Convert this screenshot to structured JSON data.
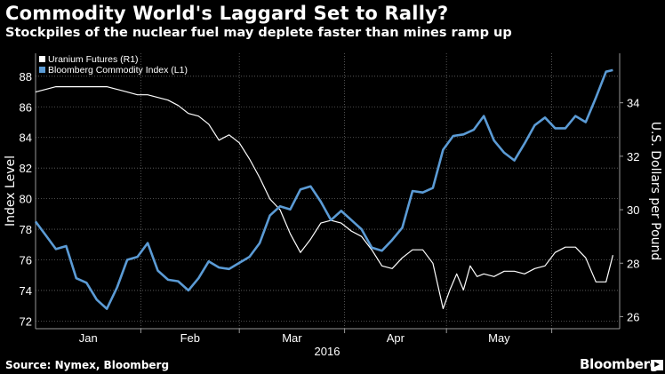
{
  "header": {
    "title": "Commodity World's Laggard Set to Rally?",
    "subtitle": "Stockpiles of the nuclear fuel may deplete faster than mines ramp up"
  },
  "footer": {
    "source": "Source: Nymex, Bloomberg",
    "brand": "Bloomberg",
    "brand_mark": "▶"
  },
  "chart_data": {
    "type": "line",
    "x_axis": {
      "tick_labels": [
        "Jan",
        "Feb",
        "Mar",
        "Apr",
        "May"
      ],
      "year_label": "2016",
      "range_days": [
        0,
        172
      ]
    },
    "y_left": {
      "label": "Index Level",
      "range": [
        71.5,
        89.5
      ],
      "ticks": [
        72,
        74,
        76,
        78,
        80,
        82,
        84,
        86,
        88
      ]
    },
    "y_right": {
      "label": "U.S. Dollars per Pound",
      "range": [
        25.55,
        35.85
      ],
      "ticks": [
        26,
        28,
        30,
        32,
        34
      ]
    },
    "grid": true,
    "legend": {
      "position": "top-left"
    },
    "colors": {
      "commodity": "#5b9bd5",
      "uranium": "#ffffff",
      "grid": "#666666"
    },
    "series": [
      {
        "name": "Uranium Futures (R1)",
        "axis": "right",
        "x": [
          0,
          3,
          6,
          9,
          12,
          15,
          18,
          21,
          24,
          27,
          30,
          33,
          36,
          39,
          42,
          45,
          48,
          51,
          54,
          57,
          60,
          63,
          66,
          69,
          72,
          75,
          78,
          81,
          84,
          87,
          90,
          93,
          96,
          99,
          102,
          105,
          108,
          111,
          114,
          117,
          120,
          122,
          124,
          126,
          128,
          130,
          132,
          135,
          138,
          141,
          144,
          147,
          150,
          153,
          156,
          159,
          162,
          165,
          168,
          170
        ],
        "values": [
          34.4,
          34.5,
          34.6,
          34.6,
          34.6,
          34.6,
          34.6,
          34.6,
          34.5,
          34.4,
          34.3,
          34.3,
          34.2,
          34.1,
          33.9,
          33.6,
          33.5,
          33.2,
          32.6,
          32.8,
          32.5,
          31.9,
          31.2,
          30.4,
          30.0,
          29.1,
          28.4,
          28.9,
          29.5,
          29.6,
          29.5,
          29.2,
          29.0,
          28.5,
          27.9,
          27.8,
          28.2,
          28.5,
          28.5,
          28.0,
          26.3,
          27.0,
          27.6,
          27.0,
          27.9,
          27.5,
          27.6,
          27.5,
          27.7,
          27.7,
          27.6,
          27.8,
          27.9,
          28.4,
          28.6,
          28.6,
          28.2,
          27.3,
          27.3,
          28.3
        ],
        "end_value": 28.3
      },
      {
        "name": "Bloomberg Commodity Index (L1)",
        "axis": "left",
        "x": [
          0,
          3,
          6,
          9,
          12,
          15,
          18,
          21,
          24,
          27,
          30,
          33,
          36,
          39,
          42,
          45,
          48,
          51,
          54,
          57,
          60,
          63,
          66,
          69,
          72,
          75,
          78,
          81,
          84,
          87,
          90,
          93,
          96,
          99,
          102,
          105,
          108,
          111,
          114,
          117,
          120,
          123,
          126,
          129,
          132,
          135,
          138,
          141,
          144,
          147,
          150,
          153,
          156,
          159,
          162,
          165,
          168,
          170
        ],
        "values": [
          78.5,
          77.6,
          76.7,
          76.9,
          74.8,
          74.5,
          73.4,
          72.8,
          74.2,
          76.0,
          76.2,
          77.1,
          75.3,
          74.7,
          74.6,
          74.0,
          74.8,
          75.9,
          75.5,
          75.4,
          75.8,
          76.2,
          77.1,
          78.9,
          79.5,
          79.3,
          80.6,
          80.8,
          79.8,
          78.6,
          79.2,
          78.6,
          78.0,
          76.8,
          76.6,
          77.3,
          78.1,
          80.5,
          80.4,
          80.7,
          83.2,
          84.1,
          84.2,
          84.5,
          85.4,
          83.8,
          83.0,
          82.5,
          83.6,
          84.8,
          85.3,
          84.6,
          84.6,
          85.4,
          85.0,
          86.6,
          88.3,
          88.4
        ]
      }
    ]
  }
}
